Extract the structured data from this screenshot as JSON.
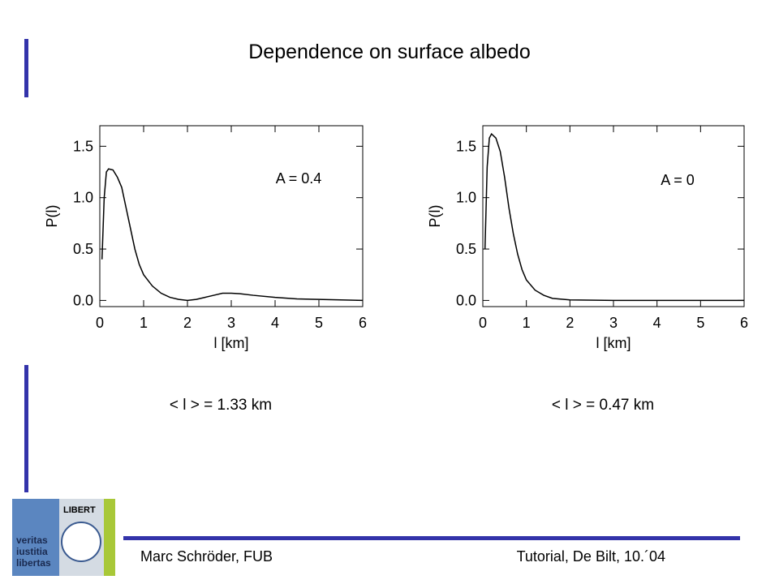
{
  "slide": {
    "title": "Dependence on surface albedo",
    "footer_left": "Marc Schröder, FUB",
    "footer_right": "Tutorial, De Bilt, 10.´04",
    "logo": {
      "motto": [
        "veritas",
        "iustitia",
        "libertas"
      ],
      "seal": "LIBERT"
    }
  },
  "chart_data": [
    {
      "type": "line",
      "xlabel": "l [km]",
      "ylabel": "P(l)",
      "annotation": "A = 0.4",
      "caption": "< l > = 1.33 km",
      "color": "#000000",
      "xlim": [
        0,
        6
      ],
      "ylim": [
        -0.06,
        1.7
      ],
      "xticks": [
        0,
        1,
        2,
        3,
        4,
        5,
        6
      ],
      "yticks": [
        {
          "value": 0,
          "label": "0.0"
        },
        0.5,
        {
          "value": 1,
          "label": "1.0"
        },
        1.5
      ],
      "x": [
        0.05,
        0.1,
        0.15,
        0.2,
        0.3,
        0.4,
        0.5,
        0.6,
        0.7,
        0.8,
        0.9,
        1.0,
        1.2,
        1.4,
        1.6,
        1.8,
        2.0,
        2.2,
        2.4,
        2.6,
        2.8,
        3.0,
        3.2,
        3.5,
        4.0,
        4.5,
        5.0,
        5.5,
        6.0
      ],
      "values": [
        0.4,
        1.0,
        1.25,
        1.28,
        1.27,
        1.2,
        1.1,
        0.9,
        0.7,
        0.5,
        0.35,
        0.25,
        0.14,
        0.07,
        0.03,
        0.01,
        0.0,
        0.01,
        0.03,
        0.05,
        0.07,
        0.07,
        0.065,
        0.05,
        0.03,
        0.015,
        0.01,
        0.005,
        0.0
      ]
    },
    {
      "type": "line",
      "xlabel": "l [km]",
      "ylabel": "P(l)",
      "annotation": "A = 0",
      "caption": "< l > = 0.47 km",
      "color": "#000000",
      "xlim": [
        0,
        6
      ],
      "ylim": [
        -0.06,
        1.7
      ],
      "xticks": [
        0,
        1,
        2,
        3,
        4,
        5,
        6
      ],
      "yticks": [
        {
          "value": 0,
          "label": "0.0"
        },
        0.5,
        {
          "value": 1,
          "label": "1.0"
        },
        1.5
      ],
      "x": [
        0.05,
        0.1,
        0.15,
        0.2,
        0.3,
        0.4,
        0.5,
        0.6,
        0.7,
        0.8,
        0.9,
        1.0,
        1.2,
        1.4,
        1.6,
        2.0,
        3.0,
        6.0
      ],
      "values": [
        0.5,
        1.3,
        1.58,
        1.62,
        1.58,
        1.45,
        1.2,
        0.9,
        0.65,
        0.45,
        0.3,
        0.2,
        0.1,
        0.05,
        0.02,
        0.005,
        0.0,
        0.0
      ]
    }
  ]
}
